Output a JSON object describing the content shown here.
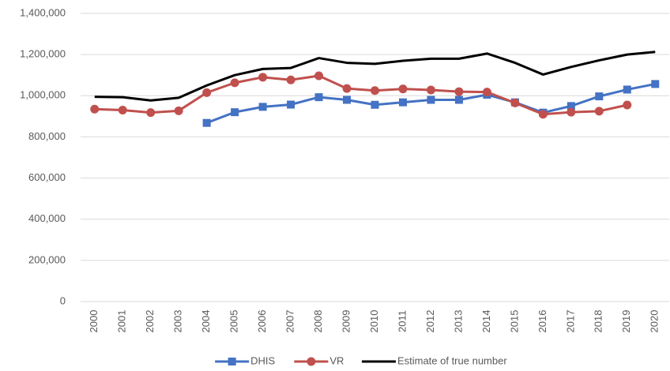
{
  "chart_data": {
    "type": "line",
    "categories": [
      "2000",
      "2001",
      "2002",
      "2003",
      "2004",
      "2005",
      "2006",
      "2007",
      "2008",
      "2009",
      "2010",
      "2011",
      "2012",
      "2013",
      "2014",
      "2015",
      "2016",
      "2017",
      "2018",
      "2019",
      "2020"
    ],
    "series": [
      {
        "name": "DHIS",
        "color": "#4472c4",
        "marker": "square",
        "values": [
          null,
          null,
          null,
          null,
          868000,
          920000,
          946000,
          957000,
          993000,
          980000,
          956000,
          968000,
          980000,
          980000,
          1005000,
          968000,
          918000,
          950000,
          997000,
          1030000,
          1057000
        ]
      },
      {
        "name": "VR",
        "color": "#c0504d",
        "marker": "circle",
        "values": [
          935000,
          930000,
          918000,
          927000,
          1015000,
          1063000,
          1090000,
          1077000,
          1097000,
          1035000,
          1025000,
          1033000,
          1028000,
          1020000,
          1018000,
          965000,
          910000,
          920000,
          925000,
          955000,
          null
        ]
      },
      {
        "name": "Estimate of true number",
        "color": "#000000",
        "marker": "none",
        "values": [
          995000,
          993000,
          977000,
          990000,
          1050000,
          1100000,
          1130000,
          1135000,
          1183000,
          1160000,
          1155000,
          1170000,
          1180000,
          1180000,
          1205000,
          1160000,
          1103000,
          1140000,
          1172000,
          1200000,
          1213000
        ]
      }
    ],
    "ylim": [
      0,
      1400000
    ],
    "yticks": [
      0,
      {
        "value": 200000,
        "label": "200,000"
      },
      {
        "value": 400000,
        "label": "400,000"
      },
      {
        "value": 600000,
        "label": "600,000"
      },
      {
        "value": 800000,
        "label": "800,000"
      },
      {
        "value": 1000000,
        "label": "1,000,000"
      },
      {
        "value": 1200000,
        "label": "1,200,000"
      },
      {
        "value": 1400000,
        "label": "1,400,000"
      }
    ],
    "grid": true,
    "legend": "bottom"
  }
}
